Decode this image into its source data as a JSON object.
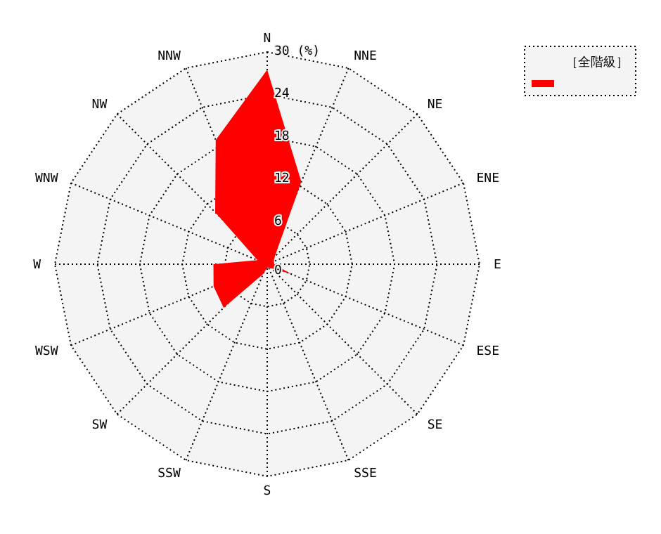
{
  "chart_data": {
    "type": "radar",
    "categories": [
      "N",
      "NNE",
      "NE",
      "ENE",
      "E",
      "ESE",
      "SE",
      "SSE",
      "S",
      "SSW",
      "SW",
      "WSW",
      "W",
      "WNW",
      "NW",
      "NNW"
    ],
    "series": [
      {
        "name": "［全階級］",
        "color": "#ff0000",
        "values": [
          27.5,
          12.6,
          1.5,
          1,
          1,
          3.6,
          0.8,
          0.5,
          0.5,
          1.5,
          8.7,
          8.2,
          7.6,
          1.5,
          10.4,
          19.0
        ]
      }
    ],
    "ylim": [
      0,
      30
    ],
    "yticks": [
      0,
      6,
      12,
      18,
      24,
      {
        "value": 30,
        "label": "30 (%)"
      }
    ],
    "legend": "top right",
    "grid": true
  }
}
